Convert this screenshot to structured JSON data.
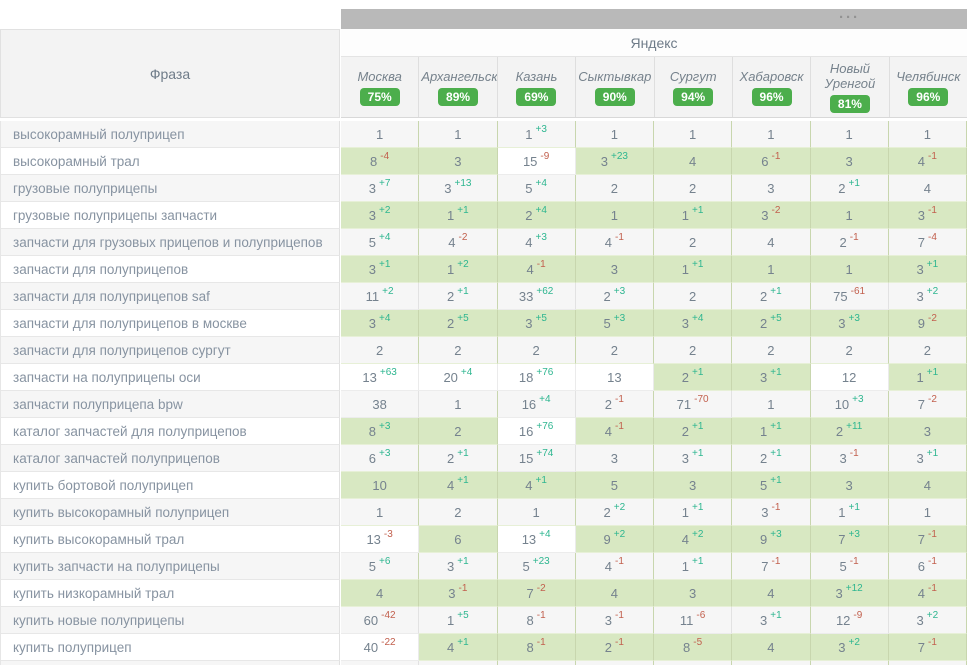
{
  "header": {
    "scroll_grip": "···",
    "search_engine": "Яндекс",
    "phrase_label": "Фраза"
  },
  "colors": {
    "badge_green": "#4cae4c",
    "cell_top10_green": "#d8e8c2",
    "delta_up": "#2eb690",
    "delta_down": "#c2604e",
    "scrollbar_gray": "#b9b9b9"
  },
  "columns": [
    {
      "name": "Москва",
      "visibility": "75%"
    },
    {
      "name": "Архангельск",
      "visibility": "89%"
    },
    {
      "name": "Казань",
      "visibility": "69%"
    },
    {
      "name": "Сыктывкар",
      "visibility": "90%"
    },
    {
      "name": "Сургут",
      "visibility": "94%"
    },
    {
      "name": "Хабаровск",
      "visibility": "96%"
    },
    {
      "name": "Новый Уренгой",
      "visibility": "81%"
    },
    {
      "name": "Челябинск",
      "visibility": "96%"
    }
  ],
  "rows": [
    {
      "phrase": "высокорамный полуприцеп",
      "cells": [
        {
          "pos": "1"
        },
        {
          "pos": "1"
        },
        {
          "pos": "1",
          "delta": "+3"
        },
        {
          "pos": "1"
        },
        {
          "pos": "1"
        },
        {
          "pos": "1"
        },
        {
          "pos": "1"
        },
        {
          "pos": "1"
        }
      ]
    },
    {
      "phrase": "высокорамный трал",
      "cells": [
        {
          "pos": "8",
          "delta": "-4"
        },
        {
          "pos": "3"
        },
        {
          "pos": "15",
          "delta": "-9"
        },
        {
          "pos": "3",
          "delta": "+23"
        },
        {
          "pos": "4"
        },
        {
          "pos": "6",
          "delta": "-1"
        },
        {
          "pos": "3"
        },
        {
          "pos": "4",
          "delta": "-1"
        }
      ]
    },
    {
      "phrase": "грузовые полуприцепы",
      "cells": [
        {
          "pos": "3",
          "delta": "+7"
        },
        {
          "pos": "3",
          "delta": "+13"
        },
        {
          "pos": "5",
          "delta": "+4"
        },
        {
          "pos": "2"
        },
        {
          "pos": "2"
        },
        {
          "pos": "3"
        },
        {
          "pos": "2",
          "delta": "+1"
        },
        {
          "pos": "4"
        }
      ]
    },
    {
      "phrase": "грузовые полуприцепы запчасти",
      "cells": [
        {
          "pos": "3",
          "delta": "+2"
        },
        {
          "pos": "1",
          "delta": "+1"
        },
        {
          "pos": "2",
          "delta": "+4"
        },
        {
          "pos": "1"
        },
        {
          "pos": "1",
          "delta": "+1"
        },
        {
          "pos": "3",
          "delta": "-2"
        },
        {
          "pos": "1"
        },
        {
          "pos": "3",
          "delta": "-1"
        }
      ]
    },
    {
      "phrase": "запчасти для грузовых прицепов и полуприцепов",
      "cells": [
        {
          "pos": "5",
          "delta": "+4"
        },
        {
          "pos": "4",
          "delta": "-2"
        },
        {
          "pos": "4",
          "delta": "+3"
        },
        {
          "pos": "4",
          "delta": "-1"
        },
        {
          "pos": "2"
        },
        {
          "pos": "4"
        },
        {
          "pos": "2",
          "delta": "-1"
        },
        {
          "pos": "7",
          "delta": "-4"
        }
      ]
    },
    {
      "phrase": "запчасти для полуприцепов",
      "cells": [
        {
          "pos": "3",
          "delta": "+1"
        },
        {
          "pos": "1",
          "delta": "+2"
        },
        {
          "pos": "4",
          "delta": "-1"
        },
        {
          "pos": "3"
        },
        {
          "pos": "1",
          "delta": "+1"
        },
        {
          "pos": "1"
        },
        {
          "pos": "1"
        },
        {
          "pos": "3",
          "delta": "+1"
        }
      ]
    },
    {
      "phrase": "запчасти для полуприцепов saf",
      "cells": [
        {
          "pos": "11",
          "delta": "+2"
        },
        {
          "pos": "2",
          "delta": "+1"
        },
        {
          "pos": "33",
          "delta": "+62"
        },
        {
          "pos": "2",
          "delta": "+3"
        },
        {
          "pos": "2"
        },
        {
          "pos": "2",
          "delta": "+1"
        },
        {
          "pos": "75",
          "delta": "-61"
        },
        {
          "pos": "3",
          "delta": "+2"
        }
      ]
    },
    {
      "phrase": "запчасти для полуприцепов в москве",
      "cells": [
        {
          "pos": "3",
          "delta": "+4"
        },
        {
          "pos": "2",
          "delta": "+5"
        },
        {
          "pos": "3",
          "delta": "+5"
        },
        {
          "pos": "5",
          "delta": "+3"
        },
        {
          "pos": "3",
          "delta": "+4"
        },
        {
          "pos": "2",
          "delta": "+5"
        },
        {
          "pos": "3",
          "delta": "+3"
        },
        {
          "pos": "9",
          "delta": "-2"
        }
      ]
    },
    {
      "phrase": "запчасти для полуприцепов сургут",
      "cells": [
        {
          "pos": "2"
        },
        {
          "pos": "2"
        },
        {
          "pos": "2"
        },
        {
          "pos": "2"
        },
        {
          "pos": "2"
        },
        {
          "pos": "2"
        },
        {
          "pos": "2"
        },
        {
          "pos": "2"
        }
      ]
    },
    {
      "phrase": "запчасти на полуприцепы оси",
      "cells": [
        {
          "pos": "13",
          "delta": "+63"
        },
        {
          "pos": "20",
          "delta": "+4"
        },
        {
          "pos": "18",
          "delta": "+76"
        },
        {
          "pos": "13"
        },
        {
          "pos": "2",
          "delta": "+1"
        },
        {
          "pos": "3",
          "delta": "+1"
        },
        {
          "pos": "12"
        },
        {
          "pos": "1",
          "delta": "+1"
        }
      ]
    },
    {
      "phrase": "запчасти полуприцепа bpw",
      "cells": [
        {
          "pos": "38"
        },
        {
          "pos": "1"
        },
        {
          "pos": "16",
          "delta": "+4"
        },
        {
          "pos": "2",
          "delta": "-1"
        },
        {
          "pos": "71",
          "delta": "-70"
        },
        {
          "pos": "1"
        },
        {
          "pos": "10",
          "delta": "+3"
        },
        {
          "pos": "7",
          "delta": "-2"
        }
      ]
    },
    {
      "phrase": "каталог запчастей для полуприцепов",
      "cells": [
        {
          "pos": "8",
          "delta": "+3"
        },
        {
          "pos": "2"
        },
        {
          "pos": "16",
          "delta": "+76"
        },
        {
          "pos": "4",
          "delta": "-1"
        },
        {
          "pos": "2",
          "delta": "+1"
        },
        {
          "pos": "1",
          "delta": "+1"
        },
        {
          "pos": "2",
          "delta": "+11"
        },
        {
          "pos": "3"
        }
      ]
    },
    {
      "phrase": "каталог запчастей полуприцепов",
      "cells": [
        {
          "pos": "6",
          "delta": "+3"
        },
        {
          "pos": "2",
          "delta": "+1"
        },
        {
          "pos": "15",
          "delta": "+74"
        },
        {
          "pos": "3"
        },
        {
          "pos": "3",
          "delta": "+1"
        },
        {
          "pos": "2",
          "delta": "+1"
        },
        {
          "pos": "3",
          "delta": "-1"
        },
        {
          "pos": "3",
          "delta": "+1"
        }
      ]
    },
    {
      "phrase": "купить бортовой полуприцеп",
      "cells": [
        {
          "pos": "10"
        },
        {
          "pos": "4",
          "delta": "+1"
        },
        {
          "pos": "4",
          "delta": "+1"
        },
        {
          "pos": "5"
        },
        {
          "pos": "3"
        },
        {
          "pos": "5",
          "delta": "+1"
        },
        {
          "pos": "3"
        },
        {
          "pos": "4"
        }
      ]
    },
    {
      "phrase": "купить высокорамный полуприцеп",
      "cells": [
        {
          "pos": "1"
        },
        {
          "pos": "2"
        },
        {
          "pos": "1"
        },
        {
          "pos": "2",
          "delta": "+2"
        },
        {
          "pos": "1",
          "delta": "+1"
        },
        {
          "pos": "3",
          "delta": "-1"
        },
        {
          "pos": "1",
          "delta": "+1"
        },
        {
          "pos": "1"
        }
      ]
    },
    {
      "phrase": "купить высокорамный трал",
      "cells": [
        {
          "pos": "13",
          "delta": "-3"
        },
        {
          "pos": "6"
        },
        {
          "pos": "13",
          "delta": "+4"
        },
        {
          "pos": "9",
          "delta": "+2"
        },
        {
          "pos": "4",
          "delta": "+2"
        },
        {
          "pos": "9",
          "delta": "+3"
        },
        {
          "pos": "7",
          "delta": "+3"
        },
        {
          "pos": "7",
          "delta": "-1"
        }
      ]
    },
    {
      "phrase": "купить запчасти на полуприцепы",
      "cells": [
        {
          "pos": "5",
          "delta": "+6"
        },
        {
          "pos": "3",
          "delta": "+1"
        },
        {
          "pos": "5",
          "delta": "+23"
        },
        {
          "pos": "4",
          "delta": "-1"
        },
        {
          "pos": "1",
          "delta": "+1"
        },
        {
          "pos": "7",
          "delta": "-1"
        },
        {
          "pos": "5",
          "delta": "-1"
        },
        {
          "pos": "6",
          "delta": "-1"
        }
      ]
    },
    {
      "phrase": "купить низкорамный трал",
      "cells": [
        {
          "pos": "4"
        },
        {
          "pos": "3",
          "delta": "-1"
        },
        {
          "pos": "7",
          "delta": "-2"
        },
        {
          "pos": "4"
        },
        {
          "pos": "3"
        },
        {
          "pos": "4"
        },
        {
          "pos": "3",
          "delta": "+12"
        },
        {
          "pos": "4",
          "delta": "-1"
        }
      ]
    },
    {
      "phrase": "купить новые полуприцепы",
      "cells": [
        {
          "pos": "60",
          "delta": "-42"
        },
        {
          "pos": "1",
          "delta": "+5"
        },
        {
          "pos": "8",
          "delta": "-1"
        },
        {
          "pos": "3",
          "delta": "-1"
        },
        {
          "pos": "11",
          "delta": "-6"
        },
        {
          "pos": "3",
          "delta": "+1"
        },
        {
          "pos": "12",
          "delta": "-9"
        },
        {
          "pos": "3",
          "delta": "+2"
        }
      ]
    },
    {
      "phrase": "купить полуприцеп",
      "cells": [
        {
          "pos": "40",
          "delta": "-22"
        },
        {
          "pos": "4",
          "delta": "+1"
        },
        {
          "pos": "8",
          "delta": "-1"
        },
        {
          "pos": "2",
          "delta": "-1"
        },
        {
          "pos": "8",
          "delta": "-5"
        },
        {
          "pos": "4"
        },
        {
          "pos": "3",
          "delta": "+2"
        },
        {
          "pos": "7",
          "delta": "-1"
        }
      ]
    }
  ]
}
